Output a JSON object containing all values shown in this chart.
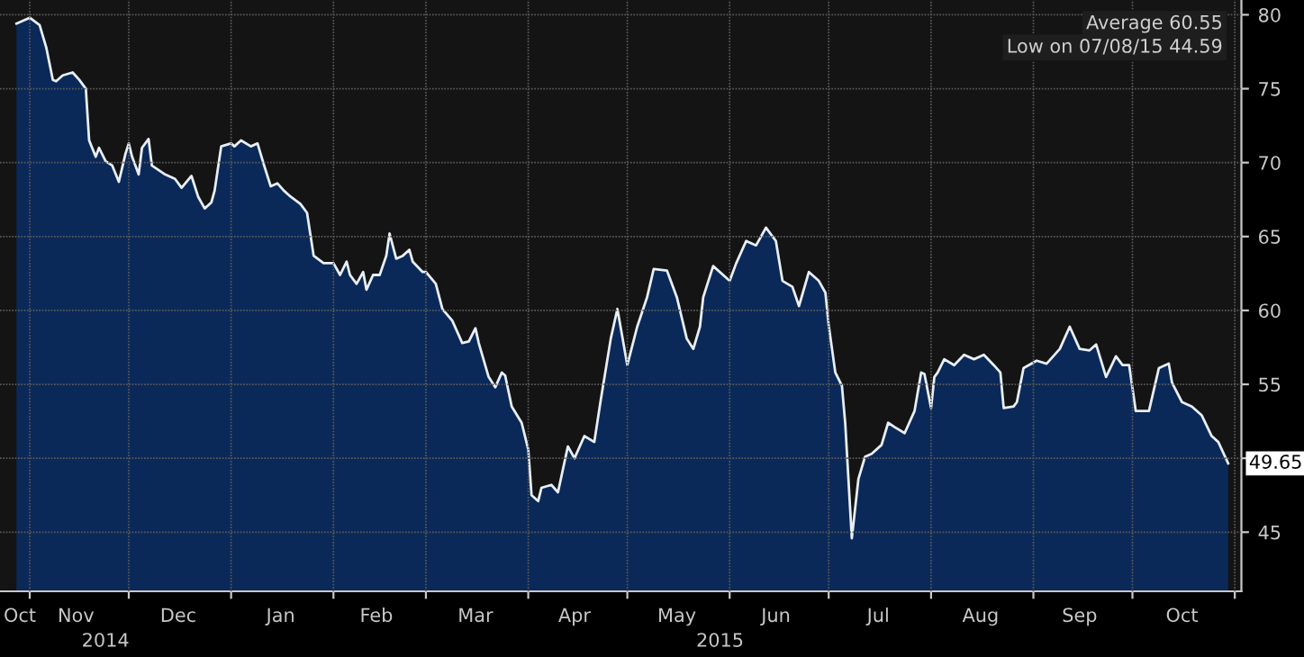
{
  "chart_data": {
    "type": "area",
    "x": [
      "2014-10-28",
      "2014-11-01",
      "2014-11-04",
      "2014-11-06",
      "2014-11-08",
      "2014-11-09",
      "2014-11-11",
      "2014-11-14",
      "2014-11-16",
      "2014-11-18",
      "2014-11-19",
      "2014-11-21",
      "2014-11-22",
      "2014-11-24",
      "2014-11-26",
      "2014-11-28",
      "2014-11-30",
      "2014-12-01",
      "2014-12-02",
      "2014-12-04",
      "2014-12-05",
      "2014-12-07",
      "2014-12-08",
      "2014-12-10",
      "2014-12-12",
      "2014-12-15",
      "2014-12-17",
      "2014-12-20",
      "2014-12-22",
      "2014-12-24",
      "2014-12-26",
      "2014-12-27",
      "2014-12-29",
      "2015-01-01",
      "2015-01-02",
      "2015-01-04",
      "2015-01-07",
      "2015-01-09",
      "2015-01-11",
      "2015-01-13",
      "2015-01-15",
      "2015-01-17",
      "2015-01-19",
      "2015-01-22",
      "2015-01-24",
      "2015-01-26",
      "2015-01-29",
      "2015-02-01",
      "2015-02-03",
      "2015-02-05",
      "2015-02-06",
      "2015-02-08",
      "2015-02-10",
      "2015-02-11",
      "2015-02-13",
      "2015-02-15",
      "2015-02-17",
      "2015-02-18",
      "2015-02-20",
      "2015-02-22",
      "2015-02-24",
      "2015-02-25",
      "2015-02-28",
      "2015-03-01",
      "2015-03-04",
      "2015-03-06",
      "2015-03-09",
      "2015-03-12",
      "2015-03-14",
      "2015-03-16",
      "2015-03-17",
      "2015-03-20",
      "2015-03-22",
      "2015-03-24",
      "2015-03-25",
      "2015-03-27",
      "2015-03-30",
      "2015-04-01",
      "2015-04-02",
      "2015-04-04",
      "2015-04-05",
      "2015-04-08",
      "2015-04-10",
      "2015-04-13",
      "2015-04-15",
      "2015-04-18",
      "2015-04-21",
      "2015-04-23",
      "2015-04-26",
      "2015-04-28",
      "2015-05-01",
      "2015-05-04",
      "2015-05-07",
      "2015-05-09",
      "2015-05-13",
      "2015-05-16",
      "2015-05-19",
      "2015-05-21",
      "2015-05-23",
      "2015-05-24",
      "2015-05-27",
      "2015-06-01",
      "2015-06-03",
      "2015-06-06",
      "2015-06-09",
      "2015-06-12",
      "2015-06-15",
      "2015-06-17",
      "2015-06-20",
      "2015-06-22",
      "2015-06-25",
      "2015-06-28",
      "2015-06-30",
      "2015-07-01",
      "2015-07-03",
      "2015-07-05",
      "2015-07-06",
      "2015-07-08",
      "2015-07-10",
      "2015-07-12",
      "2015-07-14",
      "2015-07-17",
      "2015-07-19",
      "2015-07-21",
      "2015-07-24",
      "2015-07-27",
      "2015-07-29",
      "2015-07-30",
      "2015-08-01",
      "2015-08-02",
      "2015-08-03",
      "2015-08-05",
      "2015-08-08",
      "2015-08-11",
      "2015-08-14",
      "2015-08-17",
      "2015-08-20",
      "2015-08-22",
      "2015-08-23",
      "2015-08-26",
      "2015-08-27",
      "2015-08-29",
      "2015-09-02",
      "2015-09-05",
      "2015-09-09",
      "2015-09-12",
      "2015-09-15",
      "2015-09-18",
      "2015-09-20",
      "2015-09-23",
      "2015-09-26",
      "2015-09-28",
      "2015-09-30",
      "2015-10-02",
      "2015-10-06",
      "2015-10-09",
      "2015-10-12",
      "2015-10-13",
      "2015-10-16",
      "2015-10-19",
      "2015-10-22",
      "2015-10-25",
      "2015-10-27",
      "2015-10-30"
    ],
    "series": [
      {
        "color": "#e8eef5",
        "values": [
          79.4,
          79.8,
          79.3,
          77.8,
          75.6,
          75.5,
          75.9,
          76.1,
          75.6,
          75.0,
          71.5,
          70.4,
          71.0,
          70.1,
          69.8,
          68.7,
          70.6,
          71.3,
          70.4,
          69.2,
          71.0,
          71.6,
          69.8,
          69.5,
          69.2,
          68.9,
          68.3,
          69.1,
          67.7,
          66.9,
          67.3,
          68.1,
          71.1,
          71.3,
          71.1,
          71.5,
          71.1,
          71.3,
          69.8,
          68.4,
          68.6,
          68.1,
          67.7,
          67.2,
          66.6,
          63.7,
          63.2,
          63.2,
          62.4,
          63.3,
          62.4,
          61.8,
          62.6,
          61.4,
          62.4,
          62.4,
          63.7,
          65.2,
          63.5,
          63.7,
          64.1,
          63.3,
          62.6,
          62.6,
          61.8,
          60.1,
          59.3,
          57.8,
          57.9,
          58.8,
          57.8,
          55.5,
          54.8,
          55.8,
          55.6,
          53.5,
          52.4,
          50.6,
          47.5,
          47.1,
          48.0,
          48.2,
          47.7,
          50.8,
          50.0,
          51.5,
          51.1,
          54.0,
          58.1,
          60.1,
          56.3,
          58.9,
          60.9,
          62.8,
          62.7,
          60.9,
          58.1,
          57.4,
          58.9,
          60.9,
          63.0,
          62.0,
          63.2,
          64.7,
          64.4,
          65.6,
          64.7,
          62.0,
          61.6,
          60.3,
          62.6,
          62.0,
          61.2,
          59.0,
          55.8,
          54.9,
          52.4,
          44.59,
          48.6,
          50.1,
          50.3,
          50.9,
          52.4,
          52.1,
          51.7,
          53.2,
          55.8,
          55.7,
          53.4,
          55.5,
          55.8,
          56.7,
          56.3,
          57.0,
          56.7,
          57.0,
          56.3,
          55.8,
          53.4,
          53.5,
          53.8,
          56.1,
          56.6,
          56.4,
          57.4,
          58.9,
          57.4,
          57.3,
          57.7,
          55.5,
          56.9,
          56.3,
          56.3,
          53.2,
          53.2,
          56.1,
          56.4,
          55.1,
          53.8,
          53.5,
          52.9,
          51.5,
          51.1,
          49.65
        ]
      }
    ],
    "xlim": [
      "2014-10-23",
      "2015-11-03"
    ],
    "xticks": [
      {
        "value": "2014-10-29",
        "label": "Oct"
      },
      {
        "value": "2014-11-01",
        "label": null
      },
      {
        "value": "2014-11-15",
        "label": "Nov"
      },
      {
        "value": "2014-12-01",
        "label": null
      },
      {
        "value": "2014-12-16",
        "label": "Dec"
      },
      {
        "value": "2015-01-01",
        "label": null
      },
      {
        "value": "2015-01-16",
        "label": "Jan"
      },
      {
        "value": "2015-02-01",
        "label": null
      },
      {
        "value": "2015-02-14",
        "label": "Feb"
      },
      {
        "value": "2015-03-01",
        "label": null
      },
      {
        "value": "2015-03-16",
        "label": "Mar"
      },
      {
        "value": "2015-04-01",
        "label": null
      },
      {
        "value": "2015-04-15",
        "label": "Apr"
      },
      {
        "value": "2015-05-01",
        "label": null
      },
      {
        "value": "2015-05-16",
        "label": "May"
      },
      {
        "value": "2015-06-01",
        "label": null
      },
      {
        "value": "2015-06-15",
        "label": "Jun"
      },
      {
        "value": "2015-07-01",
        "label": null
      },
      {
        "value": "2015-07-16",
        "label": "Jul"
      },
      {
        "value": "2015-08-01",
        "label": null
      },
      {
        "value": "2015-08-16",
        "label": "Aug"
      },
      {
        "value": "2015-09-01",
        "label": null
      },
      {
        "value": "2015-09-15",
        "label": "Sep"
      },
      {
        "value": "2015-10-01",
        "label": null
      },
      {
        "value": "2015-10-16",
        "label": "Oct"
      },
      {
        "value": "2015-11-01",
        "label": null
      }
    ],
    "ylim": [
      41,
      81
    ],
    "yticks": [
      45,
      {
        "value": 50,
        "label": null
      },
      55,
      60,
      65,
      70,
      75,
      80
    ],
    "grid": true,
    "annotations": [
      "2014",
      "2015",
      "Average 60.55",
      "Low on 07/08/15 44.59",
      {
        "text": "49.65",
        "x": "2015-10-30",
        "y": 49.65
      }
    ]
  }
}
